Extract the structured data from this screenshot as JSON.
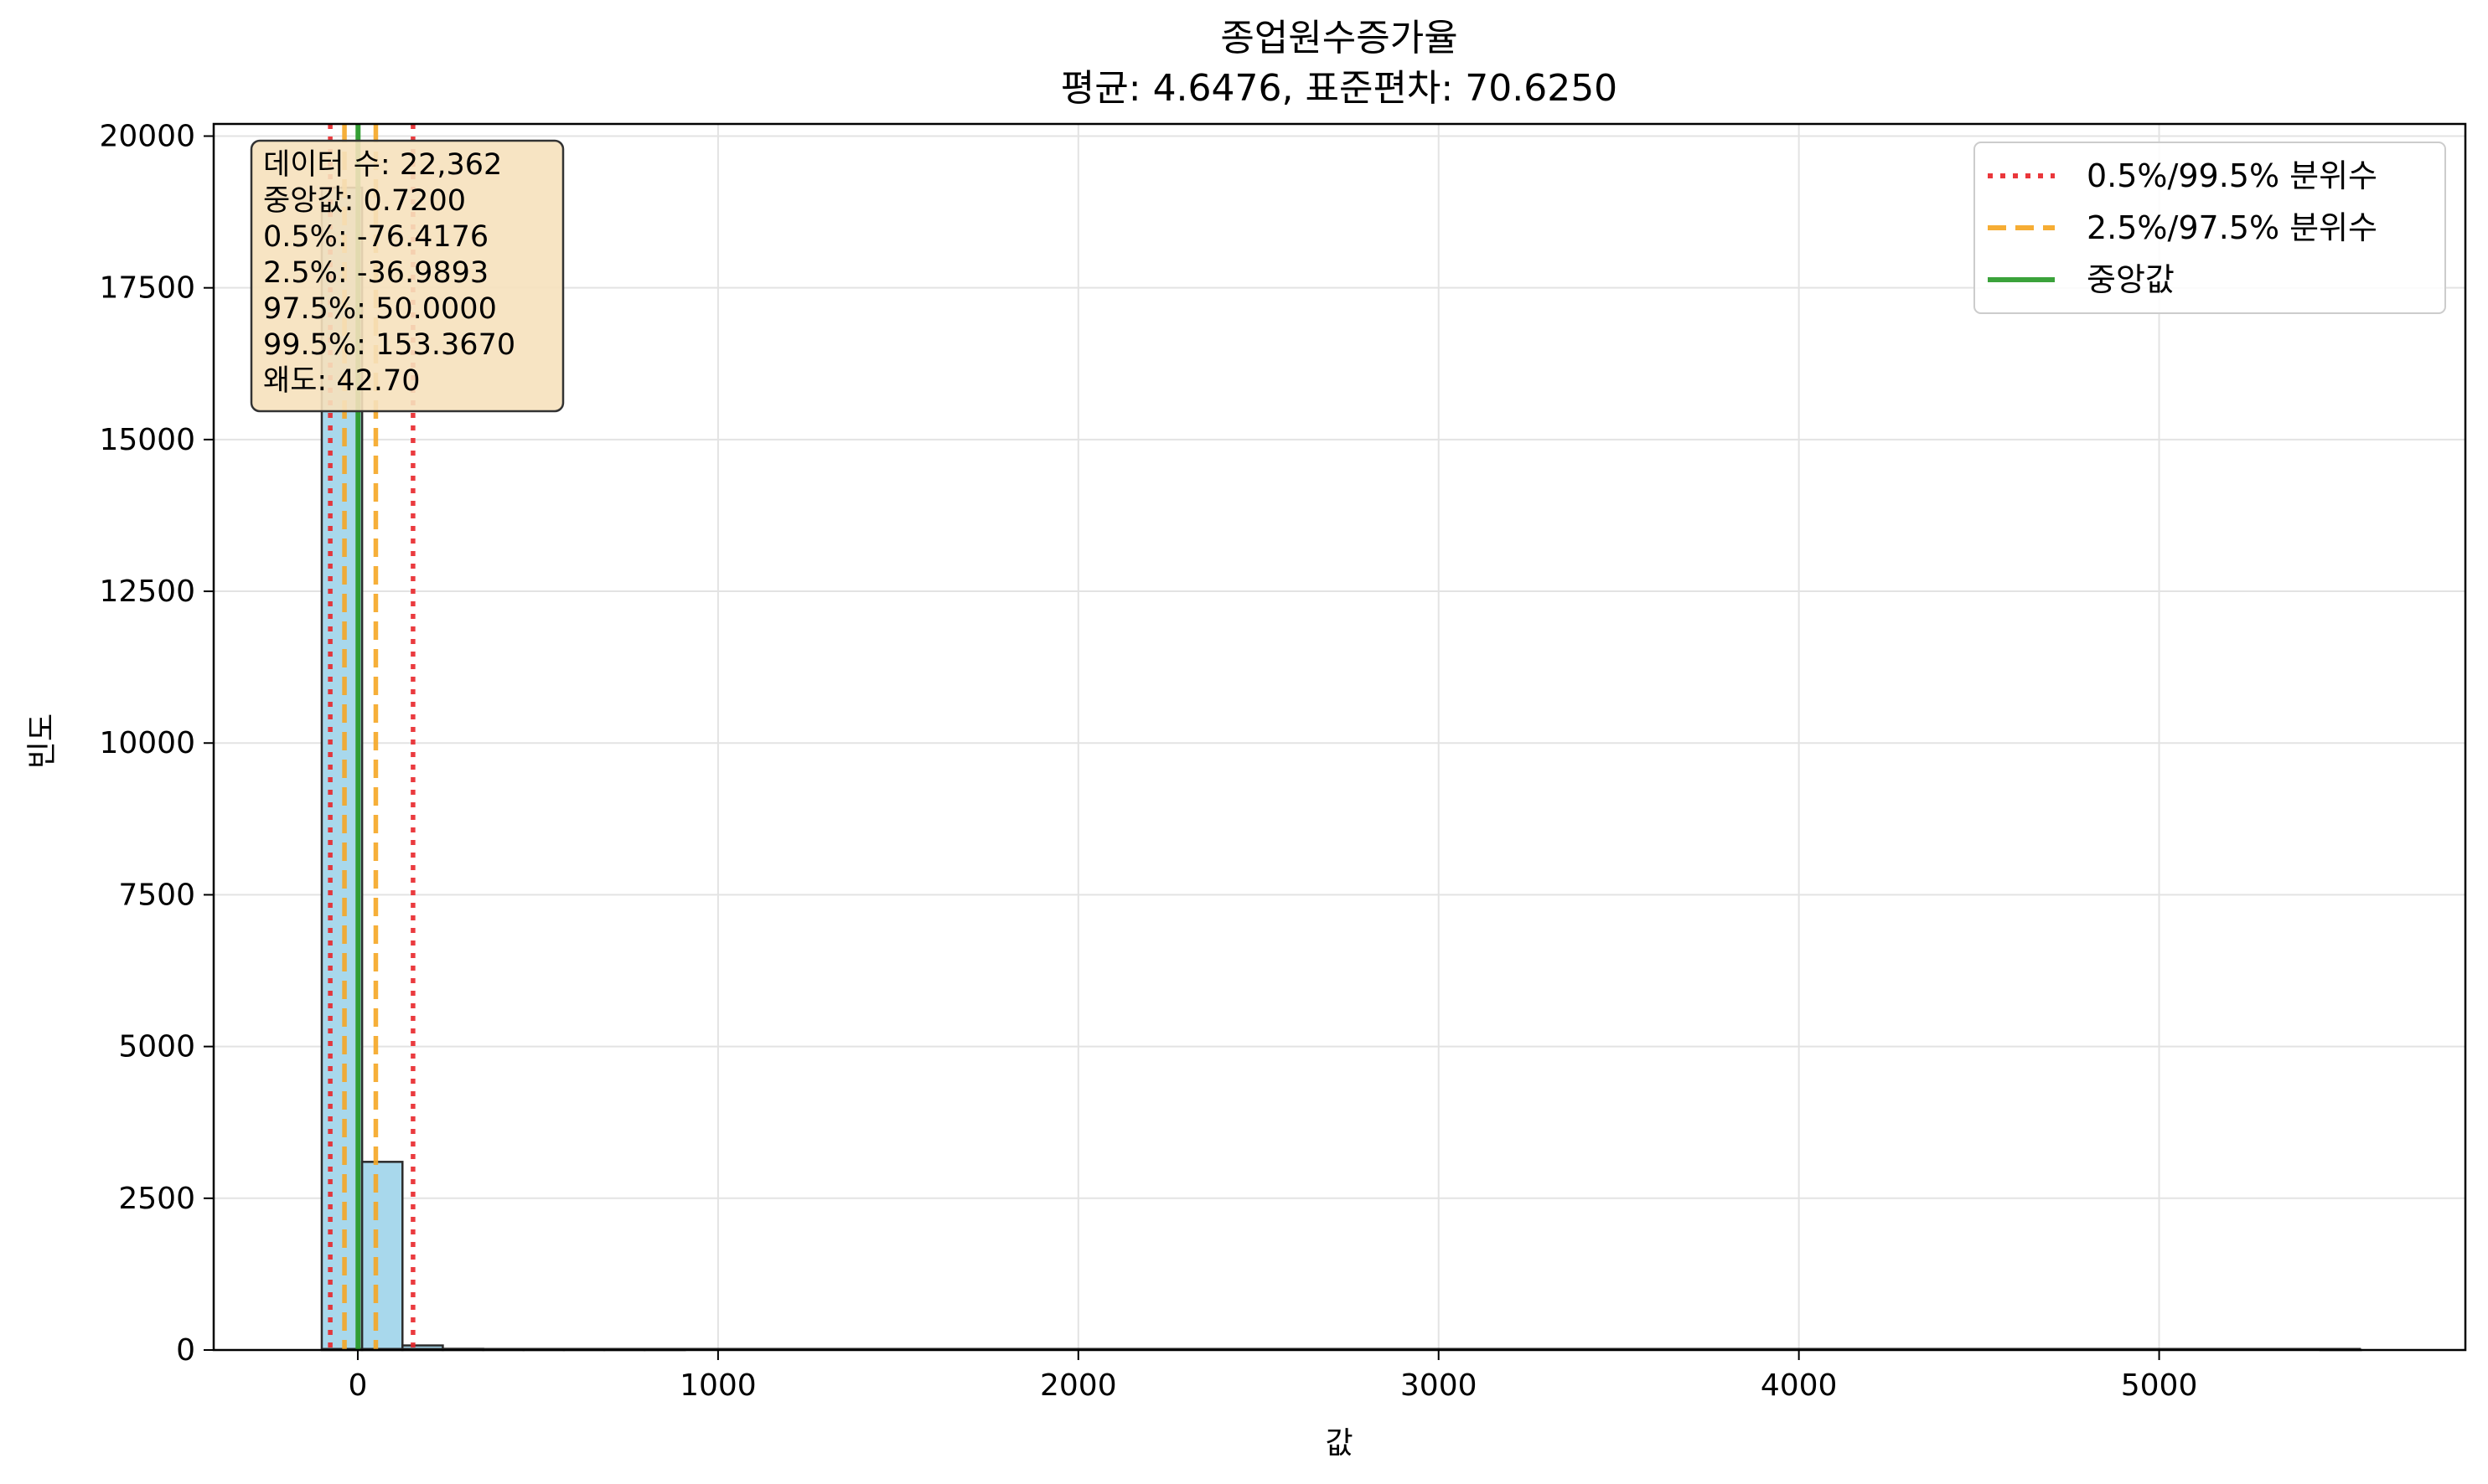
{
  "chart_data": {
    "type": "bar",
    "title": "종업원수증가율",
    "subtitle": "평균: 4.6476, 표준편차: 70.6250",
    "xlabel": "값",
    "ylabel": "빈도",
    "xlim": [
      -400,
      5850
    ],
    "ylim": [
      0,
      20200
    ],
    "x_ticks": [
      0,
      1000,
      2000,
      3000,
      4000,
      5000
    ],
    "y_ticks": [
      0,
      2500,
      5000,
      7500,
      10000,
      12500,
      15000,
      17500,
      20000
    ],
    "grid": true,
    "bin_width": 112,
    "bins": [
      {
        "start": -100,
        "count": 19150
      },
      {
        "start": 12,
        "count": 3100
      },
      {
        "start": 124,
        "count": 75
      },
      {
        "start": 236,
        "count": 20
      },
      {
        "start": 348,
        "count": 8
      },
      {
        "start": 460,
        "count": 3
      },
      {
        "start": 572,
        "count": 2
      },
      {
        "start": 684,
        "count": 1
      },
      {
        "start": 796,
        "count": 1
      },
      {
        "start": 5448,
        "count": 1
      }
    ],
    "x_range_end": 5560,
    "reference_lines": [
      {
        "id": "q05",
        "value": -76.4176,
        "style": "dotted",
        "color": "#e8262a"
      },
      {
        "id": "q995",
        "value": 153.367,
        "style": "dotted",
        "color": "#e8262a"
      },
      {
        "id": "q25",
        "value": -36.9893,
        "style": "dashed",
        "color": "#f5a623"
      },
      {
        "id": "q975",
        "value": 50.0,
        "style": "dashed",
        "color": "#f5a623"
      },
      {
        "id": "median",
        "value": 0.72,
        "style": "solid",
        "color": "#2a9a2a"
      }
    ],
    "legend": {
      "position": "top-right",
      "entries": [
        {
          "label": "0.5%/99.5% 분위수",
          "style": "dotted",
          "color": "#e8262a"
        },
        {
          "label": "2.5%/97.5% 분위수",
          "style": "dashed",
          "color": "#f5a623"
        },
        {
          "label": "중앙값",
          "style": "solid",
          "color": "#2a9a2a"
        }
      ]
    },
    "stats_box": {
      "lines": [
        "데이터 수: 22,362",
        "중앙값: 0.7200",
        "0.5%: -76.4176",
        "2.5%: -36.9893",
        "97.5%: 50.0000",
        "99.5%: 153.3670",
        "왜도: 42.70"
      ]
    },
    "colors": {
      "bar_fill": "#a8d8ec",
      "bar_edge": "#2b2b2b",
      "grid": "#e3e3e3",
      "stats_box_fill": "#f6e1bd",
      "stats_box_edge": "#333333"
    }
  }
}
